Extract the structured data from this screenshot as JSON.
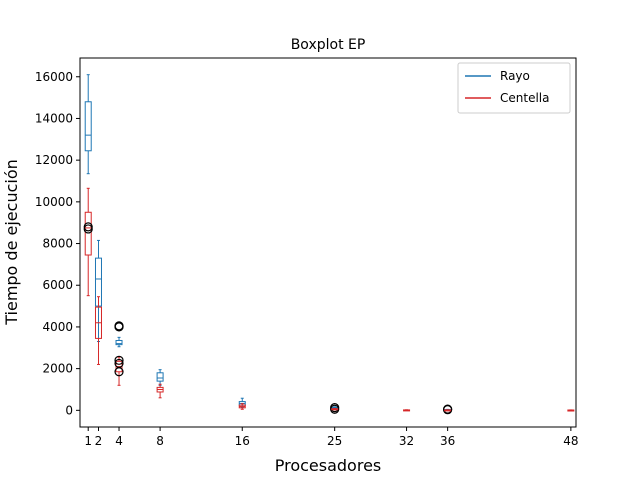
{
  "chart_data": {
    "type": "boxplot",
    "title": "Boxplot EP",
    "xlabel": "Procesadores",
    "ylabel": "Tiempo de ejecución",
    "xlim": [
      0.2,
      48.5
    ],
    "ylim": [
      -800,
      16900
    ],
    "x_ticks": [
      1,
      2,
      4,
      8,
      16,
      25,
      32,
      36,
      48
    ],
    "y_ticks": [
      0,
      2000,
      4000,
      6000,
      8000,
      10000,
      12000,
      14000,
      16000
    ],
    "legend_position": "top-right",
    "grid": false,
    "series": [
      {
        "name": "Rayo",
        "color": "#1f77b4",
        "boxes": [
          {
            "x": 1,
            "whislo": 11350,
            "q1": 12450,
            "med": 13200,
            "q3": 14800,
            "whishi": 16100,
            "fliers": []
          },
          {
            "x": 2,
            "whislo": 3300,
            "q1": 5000,
            "med": 6300,
            "q3": 7300,
            "whishi": 8150,
            "fliers": []
          },
          {
            "x": 4,
            "whislo": 3050,
            "q1": 3150,
            "med": 3200,
            "q3": 3350,
            "whishi": 3500,
            "fliers": [
              4000,
              4020,
              4050
            ]
          },
          {
            "x": 8,
            "whislo": 1200,
            "q1": 1400,
            "med": 1550,
            "q3": 1800,
            "whishi": 1950,
            "fliers": []
          },
          {
            "x": 16,
            "whislo": 150,
            "q1": 250,
            "med": 330,
            "q3": 420,
            "whishi": 580,
            "fliers": []
          },
          {
            "x": 25,
            "whislo": 60,
            "q1": 90,
            "med": 110,
            "q3": 140,
            "whishi": 170,
            "fliers": [
              50,
              130
            ]
          },
          {
            "x": 36,
            "whislo": 10,
            "q1": 20,
            "med": 25,
            "q3": 35,
            "whishi": 45,
            "fliers": [
              30,
              60
            ]
          }
        ]
      },
      {
        "name": "Centella",
        "color": "#d62728",
        "boxes": [
          {
            "x": 1,
            "whislo": 5500,
            "q1": 7450,
            "med": 8750,
            "q3": 9500,
            "whishi": 10650,
            "fliers": [
              8700,
              8800
            ]
          },
          {
            "x": 2,
            "whislo": 2200,
            "q1": 3450,
            "med": 4200,
            "q3": 4950,
            "whishi": 5450,
            "fliers": []
          },
          {
            "x": 4,
            "whislo": 1200,
            "q1": 1850,
            "med": 2100,
            "q3": 2350,
            "whishi": 2550,
            "fliers": [
              1850,
              2250,
              2400
            ]
          },
          {
            "x": 8,
            "whislo": 600,
            "q1": 880,
            "med": 1000,
            "q3": 1100,
            "whishi": 1250,
            "fliers": []
          },
          {
            "x": 16,
            "whislo": 50,
            "q1": 120,
            "med": 180,
            "q3": 250,
            "whishi": 320,
            "fliers": []
          },
          {
            "x": 25,
            "whislo": 30,
            "q1": 50,
            "med": 60,
            "q3": 75,
            "whishi": 90,
            "fliers": []
          },
          {
            "x": 32,
            "whislo": 5,
            "q1": 10,
            "med": 15,
            "q3": 20,
            "whishi": 25,
            "fliers": []
          },
          {
            "x": 36,
            "whislo": 5,
            "q1": 10,
            "med": 15,
            "q3": 20,
            "whishi": 25,
            "fliers": []
          },
          {
            "x": 48,
            "whislo": 5,
            "q1": 10,
            "med": 12,
            "q3": 15,
            "whishi": 20,
            "fliers": []
          }
        ]
      }
    ]
  }
}
